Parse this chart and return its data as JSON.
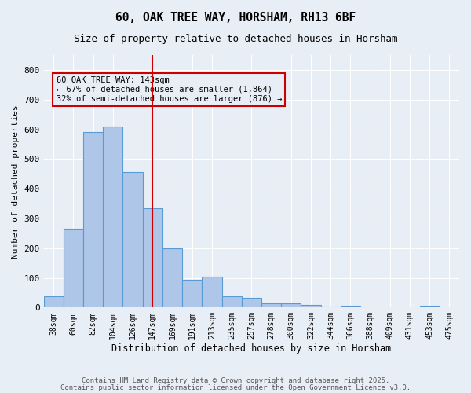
{
  "title1": "60, OAK TREE WAY, HORSHAM, RH13 6BF",
  "title2": "Size of property relative to detached houses in Horsham",
  "xlabel": "Distribution of detached houses by size in Horsham",
  "ylabel": "Number of detached properties",
  "bin_labels": [
    "38sqm",
    "60sqm",
    "82sqm",
    "104sqm",
    "126sqm",
    "147sqm",
    "169sqm",
    "191sqm",
    "213sqm",
    "235sqm",
    "257sqm",
    "278sqm",
    "300sqm",
    "322sqm",
    "344sqm",
    "366sqm",
    "388sqm",
    "409sqm",
    "431sqm",
    "453sqm",
    "475sqm"
  ],
  "bar_values": [
    38,
    265,
    590,
    610,
    455,
    335,
    200,
    93,
    103,
    38,
    33,
    15,
    15,
    10,
    4,
    5,
    0,
    0,
    0,
    5,
    0
  ],
  "bar_color": "#aec6e8",
  "bar_edge_color": "#5b9bd5",
  "vline_x_index": 5,
  "vline_color": "#cc0000",
  "annotation_text": "60 OAK TREE WAY: 143sqm\n← 67% of detached houses are smaller (1,864)\n32% of semi-detached houses are larger (876) →",
  "annotation_box_color": "#cc0000",
  "ylim": [
    0,
    850
  ],
  "yticks": [
    0,
    100,
    200,
    300,
    400,
    500,
    600,
    700,
    800
  ],
  "bg_color": "#e8eef5",
  "grid_color": "#ffffff",
  "footer1": "Contains HM Land Registry data © Crown copyright and database right 2025.",
  "footer2": "Contains public sector information licensed under the Open Government Licence v3.0."
}
